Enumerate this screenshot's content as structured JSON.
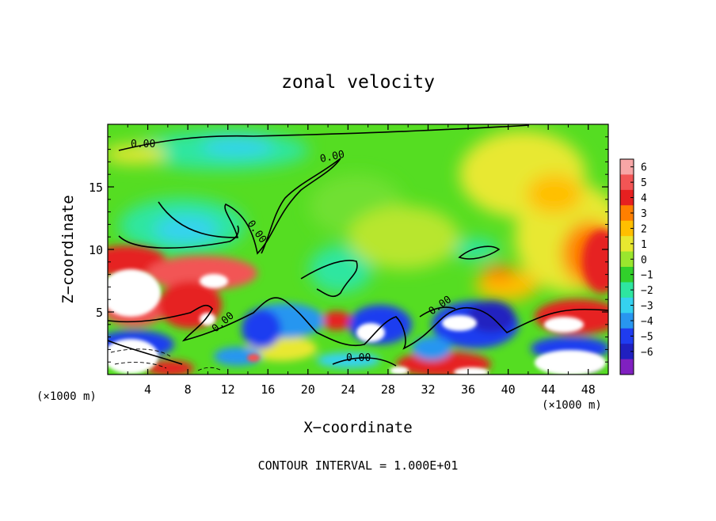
{
  "chart_data": {
    "type": "heatmap",
    "title": "zonal velocity",
    "xlabel": "X−coordinate",
    "ylabel": "Z−coordinate",
    "x_unit_label": "(×1000 m)",
    "z_unit_label": "(×1000 m)",
    "footer": "CONTOUR INTERVAL = 1.000E+01",
    "xlim": [
      0,
      50
    ],
    "ylim": [
      0,
      20
    ],
    "x_ticks": [
      "4",
      "8",
      "12",
      "16",
      "20",
      "24",
      "28",
      "32",
      "36",
      "40",
      "44",
      "48"
    ],
    "y_ticks": [
      "5",
      "10",
      "15"
    ],
    "colorbar_ticks": [
      "6",
      "5",
      "4",
      "3",
      "2",
      "1",
      "0",
      "−1",
      "−2",
      "−3",
      "−4",
      "−5",
      "−6"
    ],
    "colorbar_colors": [
      "#f7a6a6",
      "#f25555",
      "#e62020",
      "#ff7f00",
      "#ffbf00",
      "#e8e830",
      "#9ae62e",
      "#31d02b",
      "#2ee6a0",
      "#35d2f0",
      "#2896f0",
      "#1f3cf0",
      "#2020c0",
      "#8020c0"
    ],
    "contour_labels": [
      "0.00",
      "0.00",
      "0.00",
      "0.00",
      "0.00",
      "0.00"
    ]
  }
}
